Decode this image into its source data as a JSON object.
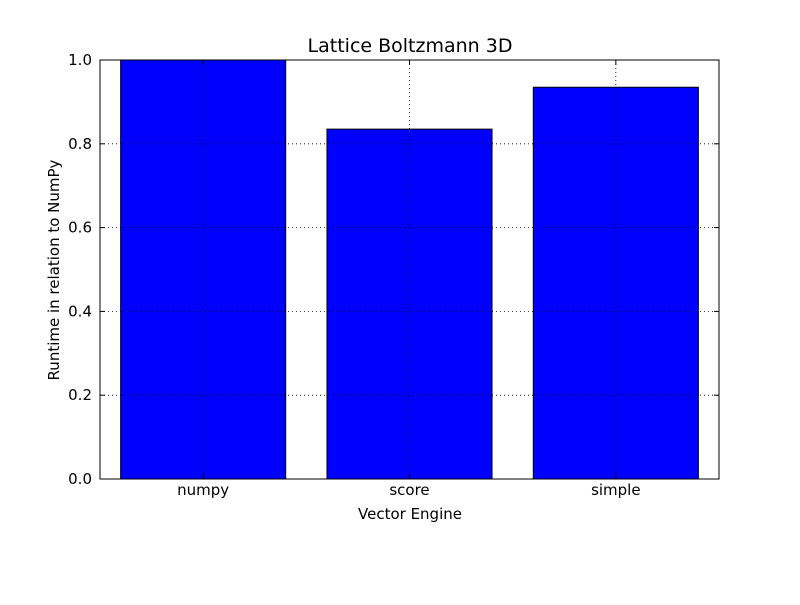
{
  "chart_data": {
    "type": "bar",
    "title": "Lattice Boltzmann 3D",
    "xlabel": "Vector Engine",
    "ylabel": "Runtime in relation to NumPy",
    "categories": [
      "numpy",
      "score",
      "simple"
    ],
    "values": [
      1.0,
      0.835,
      0.935
    ],
    "ylim": [
      0,
      1.0
    ],
    "yticks": [
      "0.0",
      "0.2",
      "0.4",
      "0.6",
      "0.8",
      "1.0"
    ],
    "ytick_values": [
      0.0,
      0.2,
      0.4,
      0.6,
      0.8,
      1.0
    ],
    "grid": true,
    "bar_color": "#0000ff",
    "edge_color": "#000000"
  }
}
